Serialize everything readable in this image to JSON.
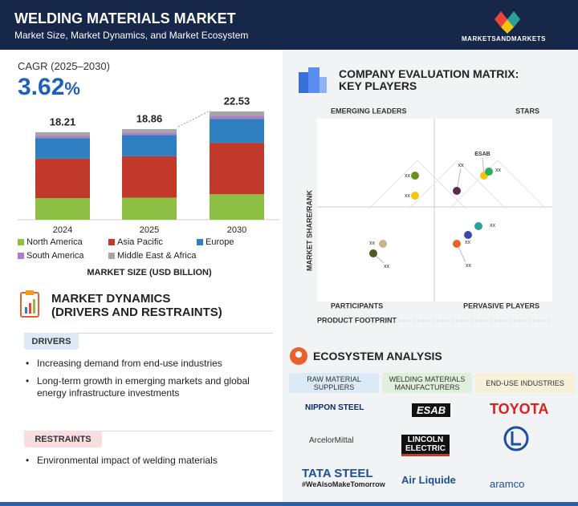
{
  "header": {
    "title": "WELDING MATERIALS MARKET",
    "subtitle": "Market Size, Market Dynamics, and Market Ecosystem",
    "brand": "MARKETSANDMARKETS"
  },
  "cagr": {
    "label": "CAGR (2025–2030)",
    "value": 3.62,
    "unit": "%"
  },
  "chart_data": {
    "type": "bar",
    "stacked": true,
    "categories": [
      "2024",
      "2025",
      "2030"
    ],
    "series": [
      {
        "name": "North America",
        "color": "#8dbf45",
        "values": [
          4.5,
          4.6,
          5.3
        ]
      },
      {
        "name": "Asia Pacific",
        "color": "#c0392b",
        "values": [
          8.2,
          8.6,
          10.7
        ]
      },
      {
        "name": "Europe",
        "color": "#2f7fc1",
        "values": [
          4.3,
          4.4,
          5.0
        ]
      },
      {
        "name": "South America",
        "color": "#b07cc6",
        "values": [
          0.5,
          0.5,
          0.6
        ]
      },
      {
        "name": "Middle East & Africa",
        "color": "#a6a6a6",
        "values": [
          0.71,
          0.76,
          0.93
        ]
      }
    ],
    "totals": [
      18.21,
      18.86,
      22.53
    ],
    "axis_label": "MARKET SIZE (USD BILLION)",
    "legend": "bottom"
  },
  "dynamics": {
    "title": "MARKET DYNAMICS",
    "subtitle": "(DRIVERS AND RESTRAINTS)",
    "drivers": {
      "title": "DRIVERS",
      "items": [
        "Increasing demand from end-use industries",
        "Long-term growth in emerging markets and global energy infrastructure investments"
      ]
    },
    "restraints": {
      "title": "RESTRAINTS",
      "items": [
        "Environmental impact of welding materials"
      ]
    }
  },
  "matrix": {
    "title": "COMPANY EVALUATION MATRIX:",
    "subtitle": "KEY PLAYERS",
    "quadrants": [
      "EMERGING LEADERS",
      "STARS",
      "PARTICIPANTS",
      "PERVASIVE PLAYERS"
    ],
    "y_label": "MARKET SHARE/RANK",
    "x_label": "PRODUCT FOOTPRINT",
    "points": [
      {
        "label": "xx",
        "color": "#6b8e23"
      },
      {
        "label": "xx",
        "color": "#f1c40f"
      },
      {
        "label": "xx",
        "color": "#5b2c4f"
      },
      {
        "label": "ESAB",
        "color": "#f1c40f"
      },
      {
        "label": "xx",
        "color": "#27ae60"
      },
      {
        "label": "xx",
        "color": "#2aa198"
      },
      {
        "label": "xx",
        "color": "#3949ab"
      },
      {
        "label": "xx",
        "color": "#e8602c"
      },
      {
        "label": "xx",
        "color": "#c9b48a"
      },
      {
        "label": "xx",
        "color": "#4d5b1f"
      }
    ]
  },
  "ecosystem": {
    "title": "ECOSYSTEM ANALYSIS",
    "columns": [
      {
        "header": "RAW MATERIAL SUPPLIERS",
        "companies": [
          "NIPPON STEEL",
          "ArcelorMittal",
          "TATA STEEL",
          "#WeAlsoMakeTomorrow"
        ]
      },
      {
        "header": "WELDING MATERIALS MANUFACTURERS",
        "companies": [
          "ESAB",
          "LINCOLN ELECTRIC",
          "Air Liquide"
        ]
      },
      {
        "header": "END-USE INDUSTRIES",
        "companies": [
          "TOYOTA",
          "aramco"
        ]
      }
    ]
  }
}
